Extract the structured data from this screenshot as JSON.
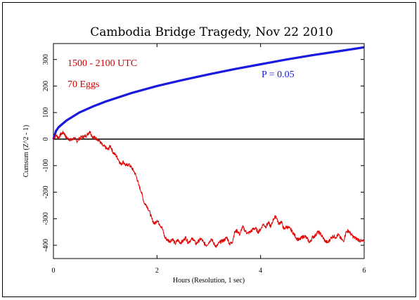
{
  "chart_data": {
    "type": "line",
    "title": "Cambodia Bridge Tragedy, Nov 22 2010",
    "xlabel": "Hours (Resolution, 1 sec)",
    "ylabel": "Cumsum (Z^2 - 1)",
    "xlim": [
      0,
      6
    ],
    "ylim": [
      -450,
      360
    ],
    "x_ticks": [
      0,
      2,
      4,
      6
    ],
    "y_ticks": [
      -400,
      -300,
      -200,
      -100,
      0,
      100,
      200,
      300
    ],
    "grid": false,
    "annotations": {
      "time_window": "1500 - 2100 UTC",
      "eggs": "70 Eggs",
      "probability_envelope": "P = 0.05"
    },
    "colors": {
      "cumsum": "#e00000",
      "envelope": "#1a1adf",
      "zero_line": "#000000",
      "time_window": "#d00000",
      "eggs": "#d00000",
      "probability_envelope": "#1a1adf"
    },
    "series": [
      {
        "name": "",
        "role": "envelope",
        "x": [
          0,
          0.05,
          0.1,
          0.25,
          0.5,
          0.75,
          1.0,
          1.5,
          2.0,
          2.5,
          3.0,
          3.5,
          4.0,
          4.5,
          5.0,
          5.5,
          6.0
        ],
        "y": [
          0,
          31,
          45,
          70,
          100,
          122,
          141,
          173,
          200,
          223,
          244,
          264,
          282,
          300,
          316,
          331,
          346
        ]
      },
      {
        "name": "",
        "role": "zero",
        "x": [
          0,
          6
        ],
        "y": [
          0,
          0
        ]
      },
      {
        "name": "",
        "role": "cumsum",
        "x": [
          0,
          0.05,
          0.1,
          0.15,
          0.2,
          0.25,
          0.3,
          0.35,
          0.4,
          0.45,
          0.5,
          0.55,
          0.6,
          0.65,
          0.7,
          0.75,
          0.8,
          0.85,
          0.9,
          0.95,
          1.0,
          1.05,
          1.1,
          1.15,
          1.2,
          1.25,
          1.3,
          1.35,
          1.4,
          1.45,
          1.5,
          1.55,
          1.6,
          1.65,
          1.7,
          1.75,
          1.8,
          1.85,
          1.9,
          1.95,
          2.0,
          2.05,
          2.1,
          2.15,
          2.2,
          2.25,
          2.3,
          2.35,
          2.4,
          2.45,
          2.5,
          2.55,
          2.6,
          2.65,
          2.7,
          2.75,
          2.8,
          2.85,
          2.9,
          2.95,
          3.0,
          3.05,
          3.1,
          3.15,
          3.2,
          3.25,
          3.3,
          3.35,
          3.4,
          3.45,
          3.5,
          3.55,
          3.6,
          3.65,
          3.7,
          3.75,
          3.8,
          3.85,
          3.9,
          3.95,
          4.0,
          4.05,
          4.1,
          4.15,
          4.2,
          4.25,
          4.3,
          4.35,
          4.4,
          4.45,
          4.5,
          4.55,
          4.6,
          4.65,
          4.7,
          4.75,
          4.8,
          4.85,
          4.9,
          4.95,
          5.0,
          5.05,
          5.1,
          5.15,
          5.2,
          5.25,
          5.3,
          5.35,
          5.4,
          5.45,
          5.5,
          5.55,
          5.6,
          5.65,
          5.7,
          5.75,
          5.8,
          5.85,
          5.9,
          5.95,
          6.0
        ],
        "y": [
          0,
          15,
          5,
          20,
          25,
          5,
          0,
          -5,
          5,
          -8,
          2,
          8,
          10,
          15,
          30,
          10,
          5,
          0,
          -10,
          -25,
          -30,
          -40,
          -25,
          -50,
          -60,
          -75,
          -95,
          -85,
          -100,
          -95,
          -105,
          -120,
          -140,
          -175,
          -200,
          -240,
          -250,
          -270,
          -300,
          -320,
          -305,
          -320,
          -335,
          -370,
          -380,
          -385,
          -375,
          -395,
          -380,
          -390,
          -385,
          -370,
          -390,
          -380,
          -375,
          -395,
          -385,
          -375,
          -390,
          -400,
          -390,
          -375,
          -395,
          -405,
          -390,
          -385,
          -380,
          -370,
          -395,
          -390,
          -350,
          -345,
          -360,
          -330,
          -345,
          -355,
          -350,
          -340,
          -335,
          -350,
          -340,
          -320,
          -330,
          -315,
          -330,
          -300,
          -290,
          -320,
          -310,
          -340,
          -330,
          -335,
          -345,
          -360,
          -375,
          -380,
          -370,
          -365,
          -375,
          -390,
          -370,
          -365,
          -350,
          -355,
          -370,
          -385,
          -390,
          -375,
          -365,
          -370,
          -360,
          -375,
          -385,
          -350,
          -345,
          -360,
          -370,
          -375,
          -380,
          -385,
          -385
        ]
      }
    ]
  }
}
